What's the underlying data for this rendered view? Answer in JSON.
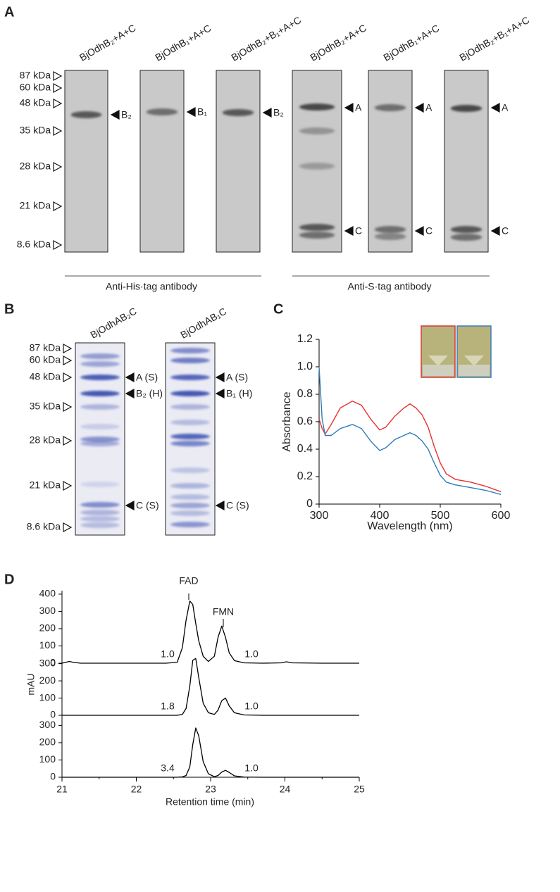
{
  "panel_labels": [
    "A",
    "B",
    "C",
    "D"
  ],
  "panel_a": {
    "lanes": [
      "BjOdhB₂+A+C",
      "BjOdhB₁+A+C",
      "BjOdhB₂+B₁+A+C",
      "BjOdhB₂+A+C",
      "BjOdhB₁+A+C",
      "BjOdhB₂+B₁+A+C"
    ],
    "markers": [
      "87 kDa",
      "60 kDa",
      "48 kDa",
      "35 kDa",
      "28 kDa",
      "21 kDa",
      "8.6 kDa"
    ],
    "band_labels": [
      [
        "B₂"
      ],
      [
        "B₁"
      ],
      [
        "B₂"
      ],
      [
        "A",
        "C"
      ],
      [
        "A",
        "C"
      ],
      [
        "A",
        "C"
      ]
    ],
    "antibodies": [
      "Anti-His·tag antibody",
      "Anti-S·tag antibody"
    ]
  },
  "panel_b": {
    "lanes": [
      "BjOdhAB₂C",
      "BjOdhAB₁C"
    ],
    "markers": [
      "87 kDa",
      "60 kDa",
      "48 kDa",
      "35 kDa",
      "28 kDa",
      "21 kDa",
      "8.6 kDa"
    ],
    "band_labels": [
      [
        "A (S)",
        "B₂ (H)",
        "C (S)"
      ],
      [
        "A (S)",
        "B₁ (H)",
        "C (S)"
      ]
    ]
  },
  "chart_data": [
    {
      "type": "line",
      "xlabel": "Wavelength (nm)",
      "ylabel": "Absorbance",
      "xlim": [
        300,
        600
      ],
      "ylim": [
        0,
        1.2
      ],
      "xticks": [
        300,
        400,
        500,
        600
      ],
      "yticks": [
        0,
        0.2,
        0.4,
        0.6,
        0.8,
        {
          "value": 1,
          "label": "1.0"
        },
        1.2
      ],
      "x": [
        300,
        305,
        310,
        320,
        335,
        355,
        370,
        385,
        400,
        410,
        425,
        440,
        450,
        460,
        470,
        480,
        490,
        500,
        510,
        525,
        550,
        575,
        600
      ],
      "series": [
        {
          "color": "#e8322e",
          "values": [
            0.62,
            0.55,
            0.51,
            0.58,
            0.7,
            0.75,
            0.72,
            0.62,
            0.54,
            0.56,
            0.64,
            0.7,
            0.73,
            0.7,
            0.65,
            0.56,
            0.42,
            0.3,
            0.22,
            0.18,
            0.16,
            0.13,
            0.09
          ]
        },
        {
          "color": "#2e7bb8",
          "values": [
            1.0,
            0.62,
            0.5,
            0.5,
            0.55,
            0.58,
            0.55,
            0.46,
            0.39,
            0.41,
            0.47,
            0.5,
            0.52,
            0.5,
            0.46,
            0.4,
            0.3,
            0.21,
            0.16,
            0.14,
            0.12,
            0.1,
            0.07
          ]
        }
      ]
    },
    {
      "type": "line",
      "xlabel": "Retention time  (min)",
      "ylabel": "mAU",
      "xlim": [
        21,
        25
      ],
      "xticks": [
        21,
        22,
        23,
        24,
        25
      ],
      "peak_labels": [
        "FAD",
        "FMN"
      ],
      "x": [
        21,
        21.05,
        21.1,
        21.15,
        21.25,
        21.5,
        22,
        22.4,
        22.55,
        22.62,
        22.67,
        22.72,
        22.76,
        22.8,
        22.84,
        22.9,
        22.97,
        23.05,
        23.1,
        23.15,
        23.2,
        23.25,
        23.32,
        23.45,
        23.7,
        23.95,
        24.02,
        24.1,
        24.5,
        25
      ],
      "subplots": [
        {
          "ylim": [
            0,
            420
          ],
          "yticks": [
            0,
            100,
            200,
            300,
            400
          ],
          "ratio_labels": [
            "1.0",
            "1.0"
          ],
          "color": "#000000",
          "values": [
            0,
            5,
            10,
            5,
            0,
            0,
            0,
            0,
            5,
            90,
            250,
            360,
            340,
            230,
            130,
            40,
            10,
            40,
            150,
            215,
            150,
            60,
            15,
            2,
            0,
            2,
            8,
            2,
            0,
            0
          ]
        },
        {
          "ylim": [
            0,
            360
          ],
          "yticks": [
            0,
            100,
            200,
            300
          ],
          "ratio_labels": [
            "1.8",
            "1.0"
          ],
          "color": "#000000",
          "values": [
            0,
            0,
            0,
            0,
            0,
            0,
            0,
            0,
            0,
            5,
            40,
            170,
            320,
            330,
            220,
            70,
            15,
            5,
            30,
            85,
            100,
            55,
            15,
            2,
            0,
            0,
            0,
            0,
            0,
            0
          ]
        },
        {
          "ylim": [
            0,
            330
          ],
          "yticks": [
            0,
            100,
            200,
            300
          ],
          "ratio_labels": [
            "3.4",
            "1.0"
          ],
          "color": "#000000",
          "values": [
            0,
            0,
            0,
            0,
            0,
            0,
            0,
            0,
            0,
            2,
            10,
            60,
            190,
            285,
            240,
            90,
            20,
            3,
            10,
            30,
            40,
            28,
            8,
            1,
            0,
            0,
            0,
            0,
            0,
            0
          ]
        }
      ]
    }
  ]
}
